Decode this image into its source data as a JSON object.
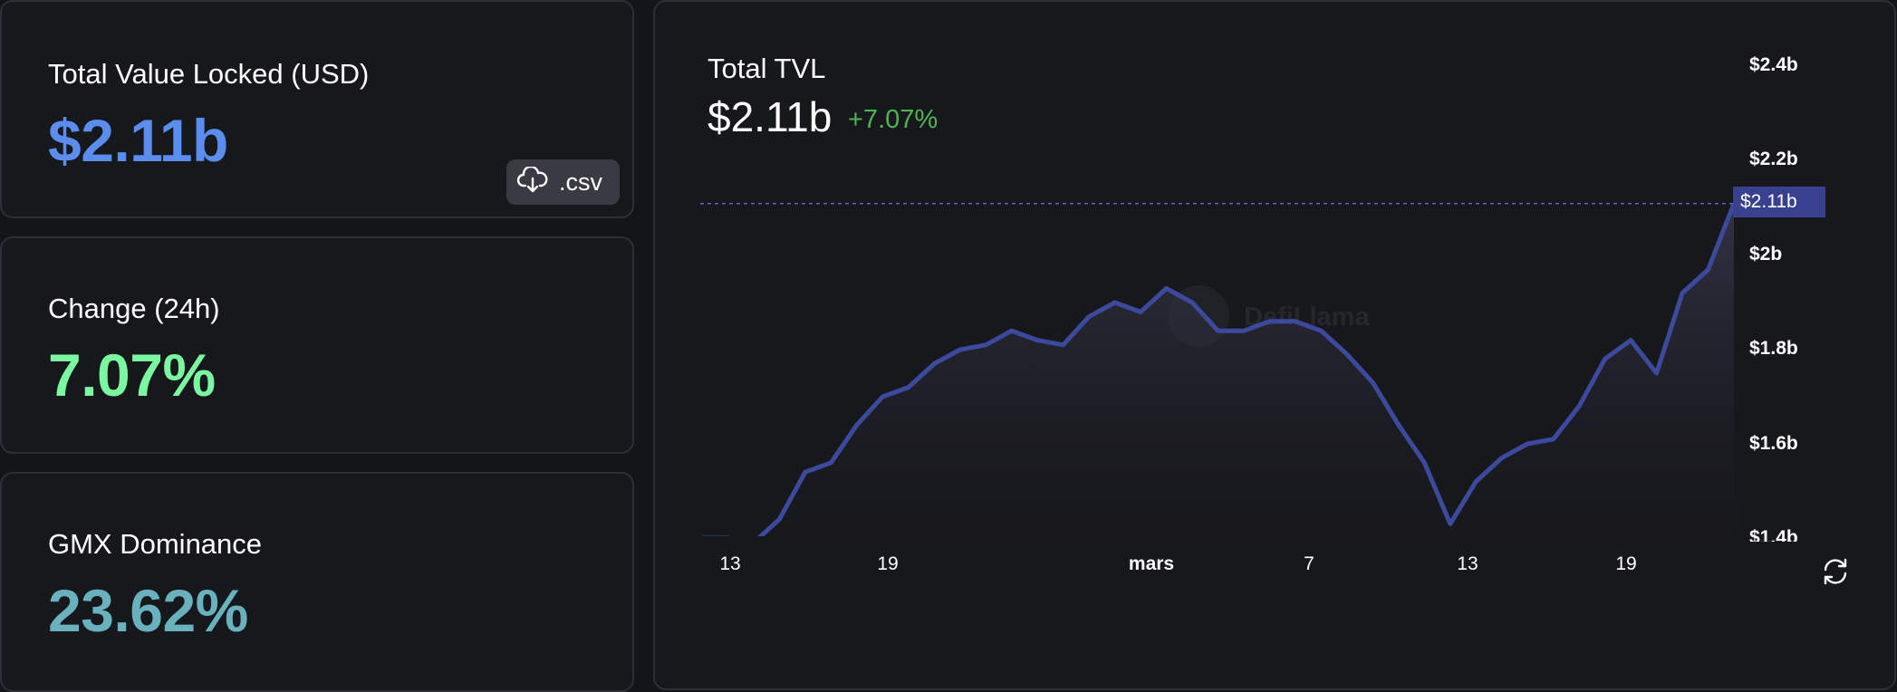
{
  "stats": {
    "tvl": {
      "label": "Total Value Locked (USD)",
      "value": "$2.11b",
      "color": "#5b8def"
    },
    "change": {
      "label": "Change (24h)",
      "value": "7.07%",
      "color": "#7cf7a1"
    },
    "dominance": {
      "label": "GMX Dominance",
      "value": "23.62%",
      "color": "#6ab1be"
    }
  },
  "csv_button": {
    "label": ".csv",
    "icon": "cloud-download-icon"
  },
  "chart_panel": {
    "title": "Total TVL",
    "value": "$2.11b",
    "change": "+7.07%",
    "change_color": "#51b352",
    "current_price_tag": "$2.11b",
    "watermark": "DefiLlama",
    "refresh_icon": "refresh-icon"
  },
  "chart_data": {
    "type": "area",
    "title": "",
    "xlabel": "",
    "ylabel": "",
    "line_color": "#3c4a9e",
    "y_tick_labels": [
      "$2.4b",
      "$2.2b",
      "$2b",
      "$1.8b",
      "$1.6b",
      "$1.4b"
    ],
    "x_tick_labels": [
      "13",
      "19",
      "mars",
      "7",
      "13",
      "19"
    ],
    "ylim": [
      1.4,
      2.4
    ],
    "y_unit": "billion USD",
    "values": [
      1.4,
      1.4,
      1.39,
      1.44,
      1.54,
      1.56,
      1.64,
      1.7,
      1.72,
      1.77,
      1.8,
      1.81,
      1.84,
      1.82,
      1.81,
      1.87,
      1.9,
      1.88,
      1.93,
      1.9,
      1.84,
      1.84,
      1.86,
      1.86,
      1.84,
      1.79,
      1.73,
      1.64,
      1.56,
      1.43,
      1.52,
      1.57,
      1.6,
      1.61,
      1.68,
      1.78,
      1.82,
      1.75,
      1.92,
      1.97,
      2.11
    ]
  }
}
